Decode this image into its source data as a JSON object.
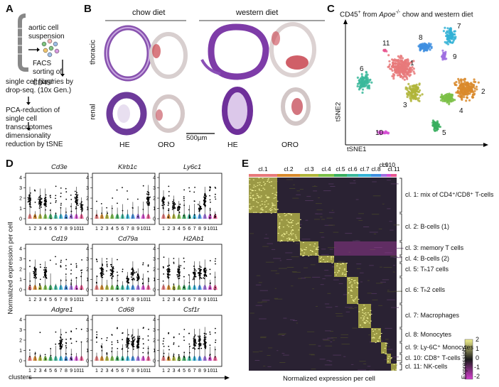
{
  "panelA": {
    "label": "A",
    "steps": [
      "aortic cell suspension",
      "FACS sorting of CD45",
      "single cell libraries by drop-seq. (10x Gen.)",
      "PCA-reduction of single cell transcriptomes",
      "dimensionality reduction by tSNE"
    ],
    "superscript": "+"
  },
  "panelB": {
    "label": "B",
    "group1": "chow diet",
    "group2": "western diet",
    "row1": "thoracic",
    "row2": "renal",
    "cols": [
      "HE",
      "ORO",
      "HE",
      "ORO"
    ],
    "scale": "500µm"
  },
  "panelC": {
    "label": "C",
    "title_pre": "CD45",
    "title_sup": "+",
    "title_mid": " from ",
    "title_italic": "Apoe",
    "title_sup2": "-/-",
    "title_post": " chow and western diet",
    "xlabel": "tSNE1",
    "ylabel": "tSNE2",
    "clusters": [
      {
        "id": "1",
        "color": "#e8797a"
      },
      {
        "id": "2",
        "color": "#d98a2b"
      },
      {
        "id": "3",
        "color": "#b0b53a"
      },
      {
        "id": "4",
        "color": "#7bbf47"
      },
      {
        "id": "5",
        "color": "#3aae5f"
      },
      {
        "id": "6",
        "color": "#3bb89b"
      },
      {
        "id": "7",
        "color": "#33b2d6"
      },
      {
        "id": "8",
        "color": "#3f8fe0"
      },
      {
        "id": "9",
        "color": "#9f6fe0"
      },
      {
        "id": "10",
        "color": "#d64fd3"
      },
      {
        "id": "11",
        "color": "#e8578f"
      }
    ]
  },
  "panelD": {
    "label": "D",
    "ylabel": "Normalized expression per cell",
    "xlabel": "clusters",
    "genes": [
      "Cd3e",
      "Klrb1c",
      "Ly6c1",
      "Cd19",
      "Cd79a",
      "H2Ab1",
      "Adgre1",
      "Cd68",
      "Csf1r"
    ],
    "ticks": [
      "0",
      "1",
      "2",
      "3",
      "4"
    ],
    "clusterTicks": [
      "1",
      "2",
      "3",
      "4",
      "5",
      "6",
      "7",
      "8",
      "9",
      "10",
      "11"
    ]
  },
  "panelE": {
    "label": "E",
    "clusterHeaders": [
      "cl.1",
      "cl.2",
      "cl.3",
      "cl.4",
      "cl.5",
      "cl.6",
      "cl.7",
      "cl.8",
      "cl.9",
      "cl.10",
      "cl.11"
    ],
    "rowLabels": [
      "cl. 1: mix of CD4⁺/CD8⁺ T-cells",
      "cl. 2: B-cells (1)",
      "cl. 3: memory T cells",
      "cl. 4: B-cells (2)",
      "cl. 5: Tₕ17 cells",
      "cl. 6: Tₕ2 cells",
      "cl. 7: Macrophages",
      "cl. 8: Monocytes",
      "cl. 9: Ly-6C⁺ Monocytes",
      "cl. 10: CD8⁺ T-cells",
      "cl. 11: NK-cells"
    ],
    "xlabel": "Normalized expression per cell",
    "legendTitle": "Expression",
    "legendTicks": [
      "2",
      "1",
      "0",
      "-1",
      "-2"
    ]
  }
}
